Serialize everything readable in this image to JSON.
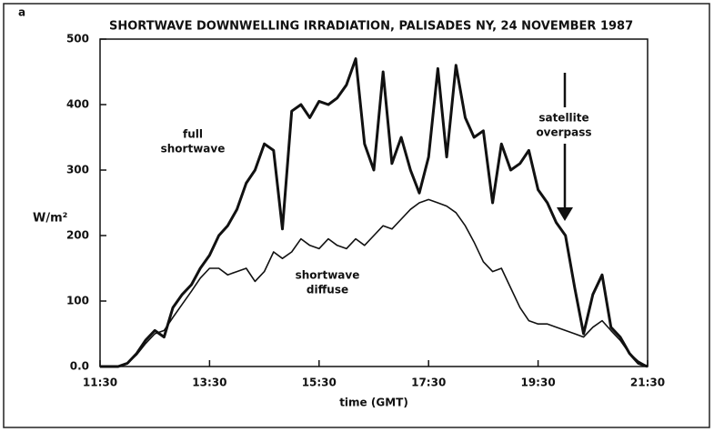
{
  "chart_data": {
    "type": "line",
    "panel": "a",
    "title": "SHORTWAVE DOWNWELLING IRRADIATION, PALISADES NY, 24 NOVEMBER 1987",
    "x_label": "time (GMT)",
    "y_label": "W/m²",
    "annotations": {
      "full": [
        "full",
        "shortwave"
      ],
      "diffuse": [
        "shortwave",
        "diffuse"
      ],
      "overpass": [
        "satellite",
        "overpass"
      ]
    },
    "x": [
      11.5,
      11.67,
      11.83,
      12.0,
      12.17,
      12.33,
      12.5,
      12.67,
      12.83,
      13.0,
      13.17,
      13.33,
      13.5,
      13.67,
      13.83,
      14.0,
      14.17,
      14.33,
      14.5,
      14.67,
      14.83,
      15.0,
      15.17,
      15.33,
      15.5,
      15.67,
      15.83,
      16.0,
      16.17,
      16.33,
      16.5,
      16.67,
      16.83,
      17.0,
      17.17,
      17.33,
      17.5,
      17.67,
      17.83,
      18.0,
      18.17,
      18.33,
      18.5,
      18.67,
      18.83,
      19.0,
      19.17,
      19.33,
      19.5,
      19.67,
      19.83,
      20.0,
      20.17,
      20.33,
      20.5,
      20.67,
      20.83,
      21.0,
      21.17,
      21.33,
      21.5
    ],
    "series": [
      {
        "name": "full shortwave",
        "color": "#111111",
        "width": 3,
        "values": [
          0,
          0,
          0,
          5,
          20,
          40,
          55,
          45,
          90,
          110,
          125,
          150,
          170,
          200,
          215,
          240,
          280,
          300,
          340,
          330,
          210,
          390,
          400,
          380,
          405,
          400,
          410,
          430,
          470,
          340,
          300,
          450,
          310,
          350,
          300,
          265,
          320,
          455,
          320,
          460,
          380,
          350,
          360,
          250,
          340,
          300,
          310,
          330,
          270,
          250,
          220,
          200,
          120,
          50,
          110,
          140,
          60,
          45,
          20,
          5,
          0
        ]
      },
      {
        "name": "shortwave diffuse",
        "color": "#111111",
        "width": 1.6,
        "values": [
          0,
          0,
          0,
          5,
          18,
          35,
          50,
          55,
          75,
          95,
          115,
          135,
          150,
          150,
          140,
          145,
          150,
          130,
          145,
          175,
          165,
          175,
          195,
          185,
          180,
          195,
          185,
          180,
          195,
          185,
          200,
          215,
          210,
          225,
          240,
          250,
          255,
          250,
          245,
          235,
          215,
          190,
          160,
          145,
          150,
          120,
          90,
          70,
          65,
          65,
          60,
          55,
          50,
          45,
          60,
          70,
          55,
          40,
          20,
          8,
          0
        ]
      }
    ],
    "xlim": [
      11.5,
      21.5
    ],
    "xticks": [
      {
        "value": 11.5,
        "label": "11:30"
      },
      {
        "value": 13.5,
        "label": "13:30"
      },
      {
        "value": 15.5,
        "label": "15:30"
      },
      {
        "value": 17.5,
        "label": "17:30"
      },
      {
        "value": 19.5,
        "label": "19:30"
      },
      {
        "value": 21.5,
        "label": "21:30"
      }
    ],
    "ylim": [
      0,
      500
    ],
    "yticks": [
      {
        "value": 0,
        "label": "0.0"
      },
      100,
      200,
      300,
      400,
      500
    ]
  }
}
